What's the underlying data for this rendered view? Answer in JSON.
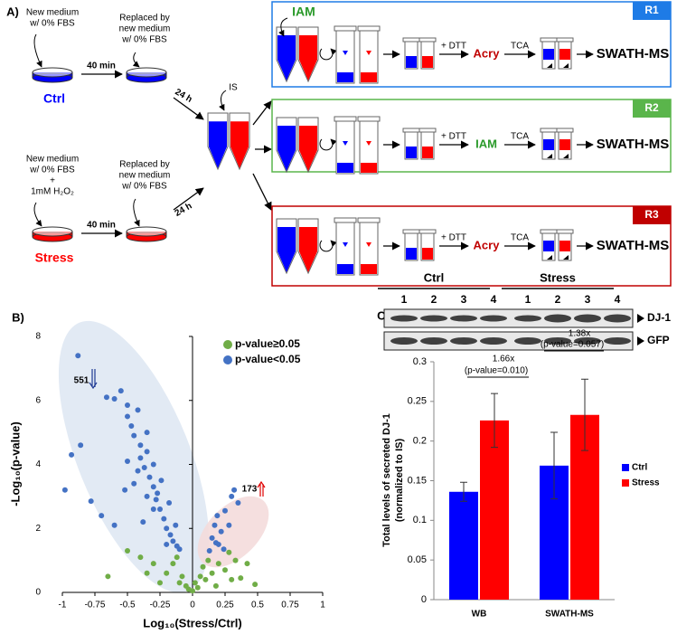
{
  "panel_a": {
    "label": "A)",
    "ctrl": {
      "medium": [
        "New medium",
        "w/ 0% FBS"
      ],
      "wait": "40 min",
      "replaced": [
        "Replaced by",
        "new medium",
        "w/ 0% FBS"
      ],
      "name": "Ctrl",
      "time": "24 h"
    },
    "stress": {
      "medium": [
        "New medium",
        "w/ 0% FBS",
        "+",
        "1mM H₂O₂"
      ],
      "wait": "40 min",
      "replaced": [
        "Replaced by",
        "new medium",
        "w/ 0% FBS"
      ],
      "name": "Stress",
      "time": "24 h"
    },
    "spike": "IS",
    "rows": [
      {
        "label": "R1",
        "alkylation": "IAM",
        "dtt": "+ DTT",
        "agent": "Acry",
        "tca": "TCA",
        "output": "SWATH-MS"
      },
      {
        "label": "R2",
        "dtt": "+ DTT",
        "agent": "IAM",
        "tca": "TCA",
        "output": "SWATH-MS"
      },
      {
        "label": "R3",
        "dtt": "+ DTT",
        "agent": "Acry",
        "tca": "TCA",
        "output": "SWATH-MS"
      }
    ]
  },
  "blot": {
    "label": "C)",
    "groups": [
      "Ctrl",
      "Stress"
    ],
    "lanes": [
      "1",
      "2",
      "3",
      "4",
      "1",
      "2",
      "3",
      "4"
    ],
    "bands": [
      "DJ-1",
      "GFP"
    ]
  },
  "chart_data": [
    {
      "type": "scatter",
      "panel_label": "B)",
      "xlabel": "Log₁₀(Stress/Ctrl)",
      "ylabel": "-Log₁₀(p-value)",
      "xlim": [
        -1,
        1
      ],
      "xticks": [
        -1,
        -0.75,
        -0.5,
        -0.25,
        0,
        0.25,
        0.5,
        0.75,
        1
      ],
      "ylim": [
        0,
        8
      ],
      "yticks": [
        0,
        2,
        4,
        6,
        8
      ],
      "legend": "upper right",
      "annotations": [
        "551",
        "173"
      ],
      "series": [
        {
          "name": "p-value≥0.05",
          "color": "#70ad47",
          "x": [
            -0.65,
            -0.5,
            -0.4,
            -0.3,
            -0.2,
            -0.15,
            -0.1,
            -0.08,
            -0.05,
            -0.03,
            0,
            0.02,
            0.04,
            0.06,
            0.08,
            0.1,
            0.12,
            0.15,
            0.2,
            0.25,
            0.3,
            0.33,
            0.37,
            0.42,
            0.48,
            0.28,
            -0.25,
            -0.35,
            0.18,
            -0.12
          ],
          "y": [
            0.5,
            1.3,
            1.1,
            0.9,
            0.6,
            0.9,
            0.3,
            0.5,
            0.2,
            0.1,
            0.05,
            0.3,
            0.15,
            0.5,
            0.8,
            0.4,
            1.0,
            0.6,
            0.9,
            0.7,
            0.4,
            1.0,
            0.45,
            0.9,
            0.25,
            1.25,
            0.3,
            0.6,
            0.2,
            1.1
          ]
        },
        {
          "name": "p-value<0.05",
          "color": "#4472c4",
          "x": [
            -0.88,
            -0.86,
            -0.93,
            -0.98,
            -0.78,
            -0.7,
            -0.66,
            -0.6,
            -0.55,
            -0.5,
            -0.5,
            -0.47,
            -0.45,
            -0.42,
            -0.4,
            -0.4,
            -0.37,
            -0.35,
            -0.35,
            -0.33,
            -0.3,
            -0.3,
            -0.28,
            -0.27,
            -0.25,
            -0.24,
            -0.22,
            -0.2,
            -0.18,
            -0.17,
            -0.15,
            -0.13,
            -0.12,
            -0.1,
            -0.3,
            -0.35,
            -0.42,
            -0.45,
            -0.38,
            -0.2,
            -0.5,
            -0.52,
            -0.6,
            0.13,
            0.15,
            0.17,
            0.19,
            0.2,
            0.22,
            0.25,
            0.28,
            0.3,
            0.32,
            0.35,
            0.24,
            0.18
          ],
          "y": [
            7.4,
            4.6,
            4.3,
            3.2,
            2.85,
            2.4,
            6.1,
            6.05,
            6.3,
            5.85,
            5.5,
            5.2,
            4.9,
            5.7,
            4.6,
            4.2,
            3.9,
            5.0,
            4.4,
            3.6,
            3.3,
            4.0,
            2.9,
            3.1,
            2.6,
            3.5,
            2.3,
            2.0,
            2.8,
            1.8,
            1.6,
            2.1,
            1.45,
            1.35,
            2.6,
            3.0,
            3.8,
            3.4,
            2.2,
            1.5,
            4.1,
            3.2,
            2.1,
            1.3,
            1.7,
            2.1,
            2.4,
            1.5,
            1.9,
            2.55,
            2.1,
            3.0,
            3.2,
            2.8,
            1.35,
            1.55
          ]
        }
      ]
    },
    {
      "type": "bar",
      "ylabel": [
        "Total levels of secreted DJ-1",
        "(normalized to IS)"
      ],
      "categories": [
        "WB",
        "SWATH-MS"
      ],
      "ylim": [
        0,
        0.3
      ],
      "yticks": [
        0,
        0.05,
        0.1,
        0.15,
        0.2,
        0.25,
        0.3
      ],
      "legend": "right",
      "annotations": [
        "1.66x",
        "(p-value=0.010)",
        "1.38x",
        "(p-value=0.057)"
      ],
      "series": [
        {
          "name": "Ctrl",
          "color": "#0000ff",
          "values": [
            0.136,
            0.169
          ],
          "errors": [
            0.012,
            0.042
          ]
        },
        {
          "name": "Stress",
          "color": "#ff0000",
          "values": [
            0.226,
            0.233
          ],
          "errors": [
            0.034,
            0.045
          ]
        }
      ]
    }
  ]
}
